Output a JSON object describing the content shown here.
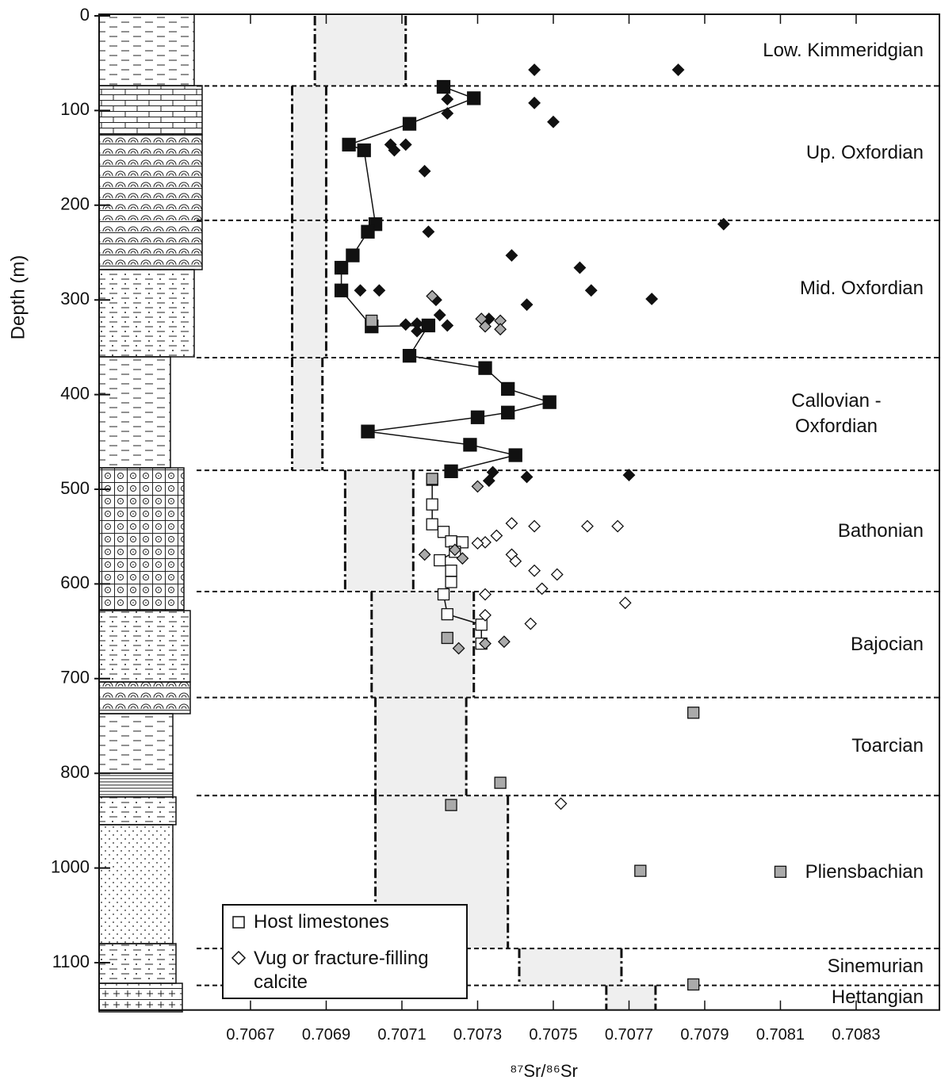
{
  "chart_data": {
    "type": "scatter",
    "x_label": "⁸⁷Sr/⁸⁶Sr",
    "y_label": "Depth (m)",
    "xlim": [
      0.7063,
      0.70852
    ],
    "ylim": [
      0,
      1150
    ],
    "y_reversed": true,
    "xticks": [
      0.7067,
      0.7069,
      0.7071,
      0.7073,
      0.7075,
      0.7077,
      0.7079,
      0.7081,
      0.7083
    ],
    "yticks": [
      0,
      100,
      200,
      300,
      400,
      500,
      600,
      700,
      800,
      1000,
      1100
    ],
    "stages": [
      "Low. Kimmeridgian",
      "Up. Oxfordian",
      "Mid. Oxfordian",
      "Callovian - Oxfordian",
      "Bathonian",
      "Bajocian",
      "Toarcian",
      "Pliensbachian",
      "Sinemurian",
      "Hettangian"
    ],
    "boundaries": [
      74,
      216,
      361,
      480,
      608,
      720,
      847,
      1085,
      1124
    ],
    "bands": [
      {
        "top": 0,
        "base": 74,
        "x": [
          0.70687,
          0.70711
        ]
      },
      {
        "top": 74,
        "base": 361,
        "x": [
          0.70681,
          0.7069
        ]
      },
      {
        "top": 361,
        "base": 480,
        "x": [
          0.70681,
          0.70689
        ]
      },
      {
        "top": 480,
        "base": 608,
        "x": [
          0.70695,
          0.70713
        ]
      },
      {
        "top": 608,
        "base": 720,
        "x": [
          0.70702,
          0.70729
        ]
      },
      {
        "top": 720,
        "base": 847,
        "x": [
          0.70703,
          0.70727
        ]
      },
      {
        "top": 847,
        "base": 1085,
        "x": [
          0.70703,
          0.70738
        ]
      },
      {
        "top": 1085,
        "base": 1124,
        "x": [
          0.70741,
          0.70768
        ]
      },
      {
        "top": 1124,
        "base": 1150,
        "x": [
          0.70764,
          0.70777
        ]
      }
    ],
    "legend": [
      {
        "name": "Host limestones",
        "marker": "square"
      },
      {
        "name": "Vug or fracture-filling calcite",
        "marker": "diamond"
      }
    ],
    "series": [
      {
        "marker": "square",
        "color": "#111111",
        "line": true,
        "x": [
          0.70721,
          0.70729,
          0.70712,
          0.70696,
          0.707,
          0.70703,
          0.70701,
          0.70697,
          0.70694,
          0.70694,
          0.70702,
          0.70717,
          0.70712,
          0.70732,
          0.70738,
          0.70749,
          0.70738,
          0.7073,
          0.70701,
          0.70728,
          0.7074,
          0.70723
        ],
        "values": [
          75,
          87,
          114,
          136,
          142,
          220,
          228,
          253,
          266,
          290,
          328,
          327,
          359,
          372,
          394,
          408,
          419,
          424,
          439,
          453,
          464,
          481
        ]
      },
      {
        "marker": "square",
        "color": "#ffffff",
        "line": true,
        "x": [
          0.70718,
          0.70718,
          0.70718,
          0.70721,
          0.70723,
          0.70726,
          0.70724,
          0.7072,
          0.70723,
          0.70723,
          0.70721,
          0.70722,
          0.70731,
          0.70731
        ],
        "values": [
          490,
          516,
          537,
          545,
          555,
          556,
          566,
          575,
          586,
          598,
          611,
          632,
          643,
          663
        ]
      },
      {
        "marker": "square",
        "color": "#aaaaaa",
        "line": false,
        "x": [
          0.70702,
          0.70718,
          0.70722,
          0.70787,
          0.70736,
          0.70723,
          0.70773,
          0.7081,
          0.70787
        ],
        "values": [
          322,
          489,
          657,
          736,
          820,
          867,
          1003,
          1004,
          1123
        ]
      },
      {
        "marker": "diamond",
        "color": "#111111",
        "line": false,
        "x": [
          0.70745,
          0.70783,
          0.70722,
          0.70745,
          0.70722,
          0.7075,
          0.70707,
          0.70711,
          0.70708,
          0.70716,
          0.70795,
          0.70717,
          0.70739,
          0.70757,
          0.7076,
          0.70699,
          0.70704,
          0.70719,
          0.70776,
          0.70743,
          0.70733,
          0.70714,
          0.70711,
          0.7072,
          0.70722,
          0.70714,
          0.70734,
          0.70743,
          0.70733,
          0.7077
        ],
        "values": [
          57,
          57,
          88,
          92,
          103,
          112,
          136,
          136,
          142,
          164,
          220,
          228,
          253,
          266,
          290,
          290,
          290,
          300,
          299,
          305,
          320,
          325,
          326,
          316,
          327,
          333,
          482,
          487,
          491,
          485
        ]
      },
      {
        "marker": "diamond",
        "color": "#aaaaaa",
        "line": false,
        "x": [
          0.70718,
          0.70731,
          0.70732,
          0.70736,
          0.70736,
          0.7073,
          0.70716,
          0.70726,
          0.70724,
          0.70732,
          0.70725,
          0.70737
        ],
        "values": [
          296,
          320,
          328,
          322,
          331,
          497,
          569,
          573,
          564,
          663,
          668,
          661
        ]
      },
      {
        "marker": "diamond",
        "color": "#ffffff",
        "line": false,
        "x": [
          0.70739,
          0.70745,
          0.70759,
          0.70767,
          0.70735,
          0.70732,
          0.7073,
          0.70739,
          0.7074,
          0.70745,
          0.70751,
          0.70747,
          0.70732,
          0.70769,
          0.70732,
          0.70744,
          0.70752
        ],
        "values": [
          536,
          539,
          539,
          539,
          549,
          556,
          557,
          569,
          576,
          586,
          590,
          605,
          611,
          620,
          633,
          642,
          864
        ]
      }
    ]
  }
}
